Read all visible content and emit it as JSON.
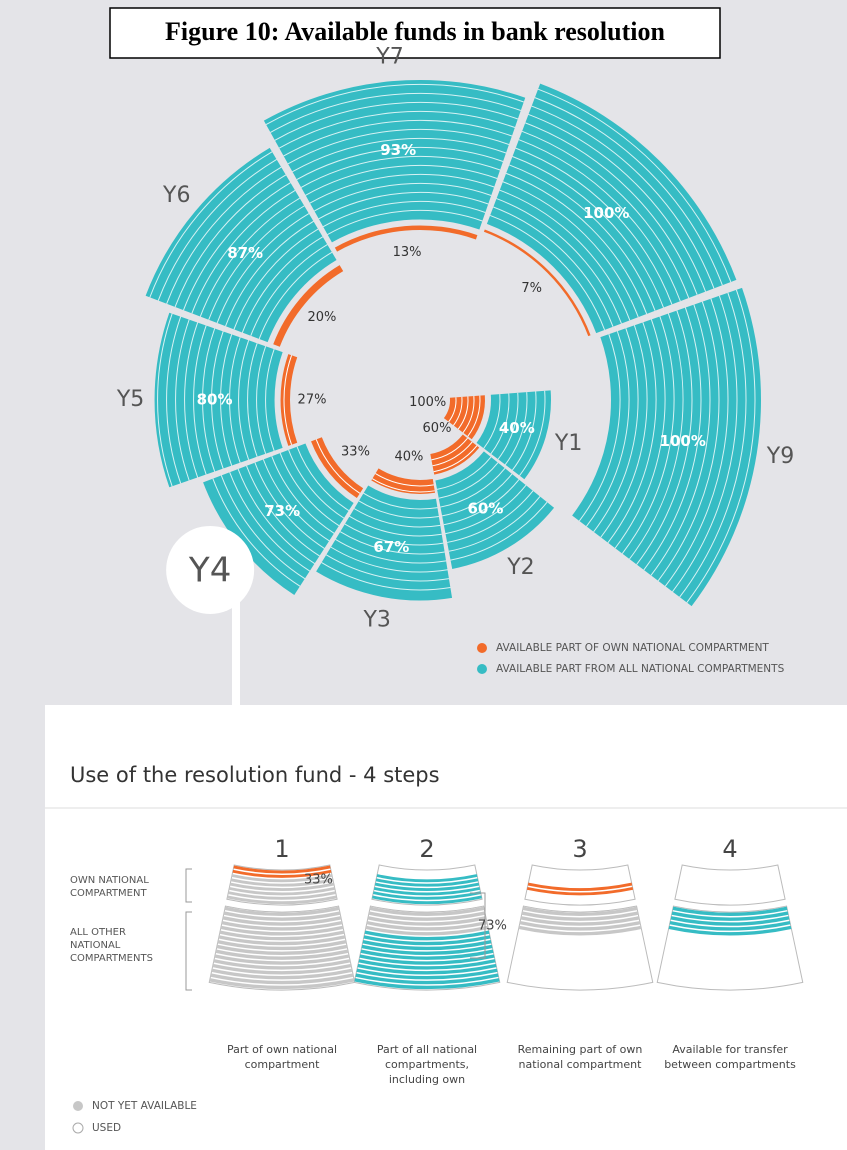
{
  "chart_data": {
    "type": "spiral",
    "title": "Figure 10: Available funds in bank resolution",
    "categories": [
      "Y1",
      "Y2",
      "Y3",
      "Y4",
      "Y5",
      "Y6",
      "Y7",
      null,
      "Y9"
    ],
    "series": [
      {
        "name": "AVAILABLE PART OF OWN NATIONAL COMPARTMENT",
        "color": "#f26b2a",
        "values": [
          100,
          60,
          40,
          33,
          27,
          20,
          13,
          7,
          null
        ],
        "value_labels": [
          "100%",
          "60%",
          "40%",
          "33%",
          "27%",
          "20%",
          "13%",
          "7%",
          null
        ]
      },
      {
        "name": "AVAILABLE PART FROM ALL NATIONAL COMPARTMENTS",
        "color": "#36bcc4",
        "values": [
          40,
          60,
          67,
          73,
          80,
          87,
          93,
          100,
          100
        ],
        "value_labels": [
          "40%",
          "60%",
          "67%",
          "73%",
          "80%",
          "87%",
          "93%",
          "100%",
          "100%"
        ]
      }
    ]
  },
  "steps_panel": {
    "title": "Use of the resolution fund - 4 steps",
    "side_labels": [
      [
        "OWN NATIONAL",
        "COMPARTMENT"
      ],
      [
        "ALL OTHER",
        "NATIONAL",
        "COMPARTMENTS"
      ]
    ],
    "steps": [
      {
        "number": 1,
        "caption": [
          "Part of own national",
          "compartment"
        ],
        "percent": "33%"
      },
      {
        "number": 2,
        "caption": [
          "Part of all national",
          "compartments,",
          "including own"
        ],
        "percent": "73%"
      },
      {
        "number": 3,
        "caption": [
          "Remaining part of own",
          "national compartment"
        ]
      },
      {
        "number": 4,
        "caption": [
          "Available for transfer",
          "between compartments"
        ]
      }
    ],
    "legend": [
      "NOT YET AVAILABLE",
      "USED"
    ]
  }
}
